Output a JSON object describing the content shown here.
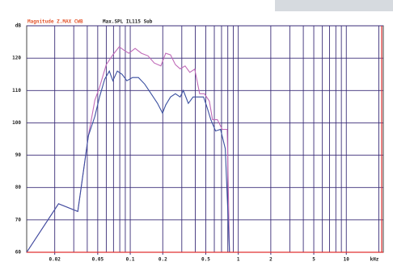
{
  "chart_data": {
    "type": "line",
    "title": "Magnitude Z.MAX CWB",
    "subtitle": "Max.SPL IL115 Sub",
    "x_label": "kHz",
    "log_x": true,
    "xlim": [
      0.011,
      22
    ],
    "xticks": [
      0.02,
      0.05,
      0.1,
      0.2,
      0.5,
      1,
      2,
      5,
      10
    ],
    "xgrid": [
      0.02,
      0.03,
      0.04,
      0.05,
      0.06,
      0.07,
      0.08,
      0.09,
      0.1,
      0.2,
      0.3,
      0.4,
      0.5,
      0.6,
      0.7,
      0.8,
      0.9,
      1,
      2,
      3,
      4,
      5,
      6,
      7,
      8,
      9,
      10,
      20
    ],
    "ylim": [
      60,
      130
    ],
    "yticks": [
      60,
      70,
      80,
      90,
      100,
      110,
      120,
      {
        "value": 130,
        "label": "dB"
      }
    ],
    "grid": true,
    "series": [
      {
        "color": "#c06ab8",
        "x": [
          0.011,
          0.0217,
          0.0327,
          0.041,
          0.047,
          0.052,
          0.06,
          0.069,
          0.079,
          0.087,
          0.097,
          0.111,
          0.127,
          0.146,
          0.167,
          0.192,
          0.213,
          0.236,
          0.262,
          0.29,
          0.322,
          0.356,
          0.395,
          0.439,
          0.486,
          0.54,
          0.577,
          0.64,
          0.71,
          0.79,
          0.83
        ],
        "values": [
          60,
          75,
          72.6,
          96,
          107,
          111,
          118,
          121,
          123.5,
          122.5,
          121.5,
          123,
          121.5,
          120.7,
          118.5,
          117.6,
          121.5,
          121,
          118,
          116.7,
          117.6,
          115.6,
          116.6,
          109,
          109,
          106.7,
          101,
          101,
          98,
          98,
          60
        ]
      },
      {
        "color": "#3a4fa0",
        "x": [
          0.011,
          0.0217,
          0.0327,
          0.041,
          0.047,
          0.052,
          0.058,
          0.064,
          0.069,
          0.076,
          0.084,
          0.093,
          0.105,
          0.119,
          0.136,
          0.156,
          0.179,
          0.199,
          0.213,
          0.236,
          0.262,
          0.29,
          0.31,
          0.345,
          0.382,
          0.439,
          0.477,
          0.512,
          0.557,
          0.617,
          0.685,
          0.758,
          0.83
        ],
        "values": [
          60,
          75,
          72.6,
          96,
          102,
          108,
          113.5,
          116,
          113,
          116,
          115,
          113,
          114,
          114,
          112,
          109,
          106,
          103,
          105.5,
          108,
          109,
          108,
          110,
          106,
          108,
          108,
          108,
          105,
          101,
          97.5,
          98,
          92,
          60
        ]
      }
    ]
  }
}
